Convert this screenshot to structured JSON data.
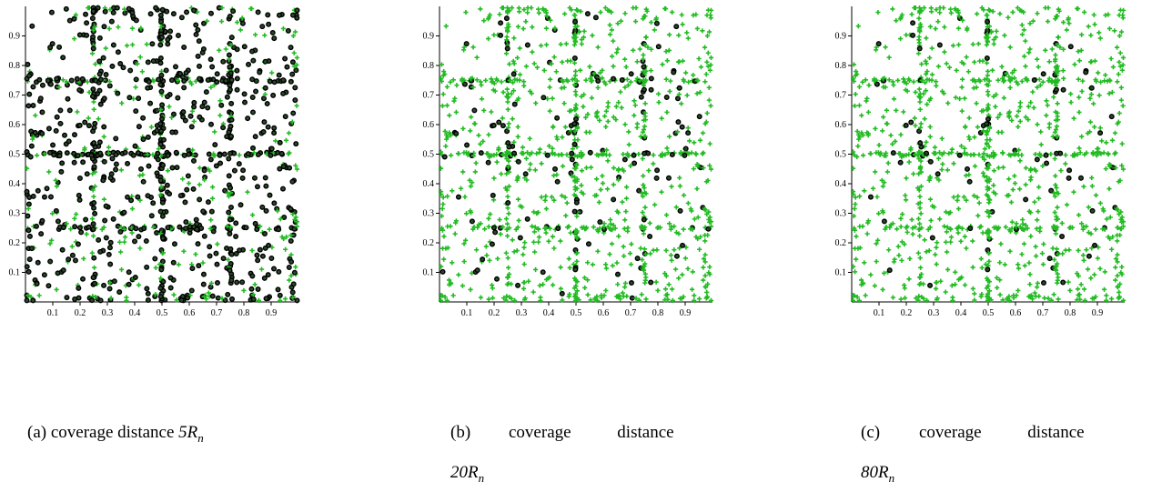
{
  "chart_data": [
    {
      "type": "scatter",
      "caption_prefix": "(a)",
      "caption_text": "coverage distance",
      "caption_math": "5R",
      "caption_sub": "n",
      "xlim": [
        0,
        1
      ],
      "ylim": [
        0,
        1
      ],
      "xticks": [
        "0.1",
        "0.2",
        "0.3",
        "0.4",
        "0.5",
        "0.6",
        "0.7",
        "0.8",
        "0.9"
      ],
      "yticks": [
        "0.1",
        "0.2",
        "0.3",
        "0.4",
        "0.5",
        "0.6",
        "0.7",
        "0.8",
        "0.9"
      ],
      "grid": false,
      "green_fraction": 0.35,
      "series_colors": {
        "uncovered": "#000000",
        "covered": "#22bb22"
      }
    },
    {
      "type": "scatter",
      "caption_prefix": "(b)",
      "caption_text": "coverage distance",
      "caption_math": "20R",
      "caption_sub": "n",
      "xlim": [
        0,
        1
      ],
      "ylim": [
        0,
        1
      ],
      "xticks": [
        "0.1",
        "0.2",
        "0.3",
        "0.4",
        "0.5",
        "0.6",
        "0.7",
        "0.8",
        "0.9"
      ],
      "yticks": [
        "0.1",
        "0.2",
        "0.3",
        "0.4",
        "0.5",
        "0.6",
        "0.7",
        "0.8",
        "0.9"
      ],
      "grid": false,
      "green_fraction": 0.85,
      "series_colors": {
        "uncovered": "#000000",
        "covered": "#22bb22"
      }
    },
    {
      "type": "scatter",
      "caption_prefix": "(c)",
      "caption_text": "coverage distance",
      "caption_math": "80R",
      "caption_sub": "n",
      "xlim": [
        0,
        1
      ],
      "ylim": [
        0,
        1
      ],
      "xticks": [
        "0.1",
        "0.2",
        "0.3",
        "0.4",
        "0.5",
        "0.6",
        "0.7",
        "0.8",
        "0.9"
      ],
      "yticks": [
        "0.1",
        "0.2",
        "0.3",
        "0.4",
        "0.5",
        "0.6",
        "0.7",
        "0.8",
        "0.9"
      ],
      "grid": false,
      "green_fraction": 0.92,
      "series_colors": {
        "uncovered": "#000000",
        "covered": "#22bb22"
      }
    }
  ]
}
